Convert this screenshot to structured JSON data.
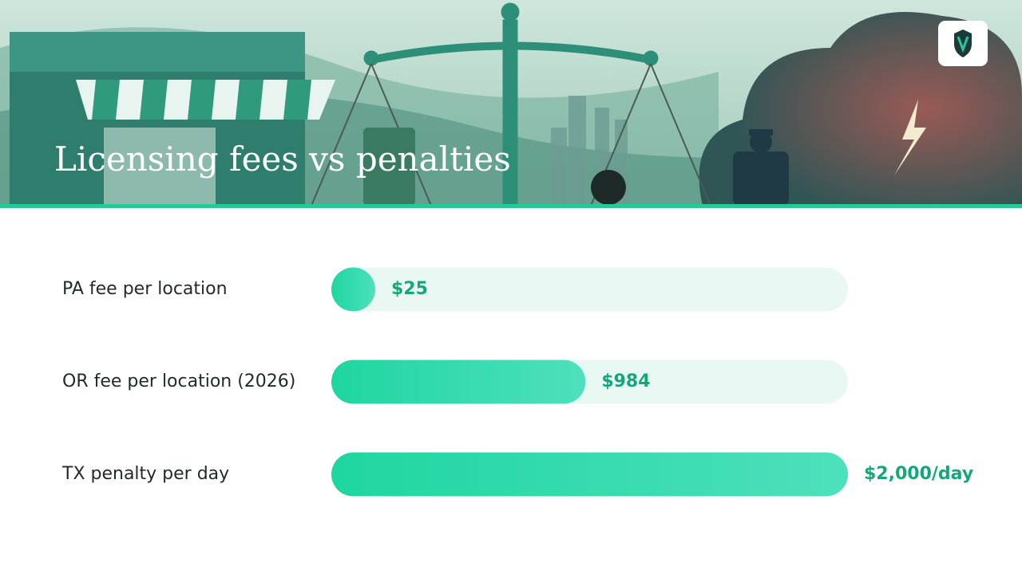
{
  "chart_data": {
    "type": "bar",
    "orientation": "horizontal",
    "title": "Licensing fees vs penalties",
    "categories": [
      "PA fee per location",
      "OR fee per location (2026)",
      "TX penalty per day"
    ],
    "values": [
      25,
      984,
      2000
    ],
    "value_labels": [
      "$25",
      "$984",
      "$2,000/day"
    ],
    "color": "#1ed6a0",
    "xlim": [
      0,
      2000
    ]
  }
}
